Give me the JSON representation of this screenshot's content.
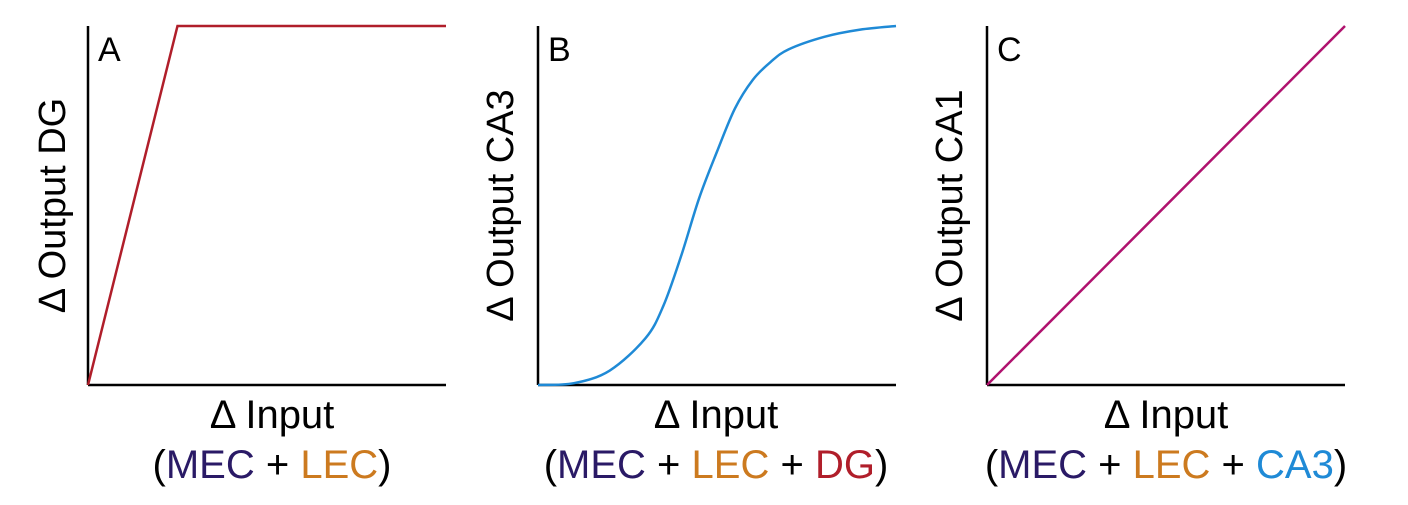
{
  "colors": {
    "mec": "#2a1a66",
    "lec": "#cc7a1f",
    "dg": "#b01e2a",
    "ca3": "#1f8ad6",
    "ca1": "#b0126e",
    "axis": "#000000"
  },
  "chart_data": [
    {
      "type": "line",
      "panel": "A",
      "ylabel": "Δ Output DG",
      "xlabel": "Δ Input",
      "xlim": [
        0,
        10
      ],
      "ylim": [
        0,
        10
      ],
      "line_color": "#b01e2a",
      "x": [
        0,
        2.5,
        10
      ],
      "y": [
        0,
        10,
        10
      ],
      "inputs": [
        {
          "text": "(",
          "color": "#000000"
        },
        {
          "text": "MEC",
          "color": "#2a1a66"
        },
        {
          "text": " + ",
          "color": "#000000"
        },
        {
          "text": "LEC",
          "color": "#cc7a1f"
        },
        {
          "text": ")",
          "color": "#000000"
        }
      ]
    },
    {
      "type": "line",
      "panel": "B",
      "ylabel": "Δ Output CA3",
      "xlabel": "Δ Input",
      "xlim": [
        0,
        10
      ],
      "ylim": [
        0,
        10
      ],
      "line_color": "#1f8ad6",
      "x": [
        0,
        1,
        2,
        3,
        3.5,
        4,
        4.5,
        5,
        5.5,
        6,
        6.5,
        7,
        8,
        9,
        10
      ],
      "y": [
        0,
        0.05,
        0.4,
        1.3,
        2.2,
        3.6,
        5.2,
        6.5,
        7.7,
        8.5,
        9.0,
        9.35,
        9.7,
        9.9,
        10
      ],
      "inputs": [
        {
          "text": "(",
          "color": "#000000"
        },
        {
          "text": "MEC",
          "color": "#2a1a66"
        },
        {
          "text": " + ",
          "color": "#000000"
        },
        {
          "text": "LEC",
          "color": "#cc7a1f"
        },
        {
          "text": " + ",
          "color": "#000000"
        },
        {
          "text": "DG",
          "color": "#b01e2a"
        },
        {
          "text": ")",
          "color": "#000000"
        }
      ]
    },
    {
      "type": "line",
      "panel": "C",
      "ylabel": "Δ Output CA1",
      "xlabel": "Δ Input",
      "xlim": [
        0,
        10
      ],
      "ylim": [
        0,
        10
      ],
      "line_color": "#b0126e",
      "x": [
        0,
        10
      ],
      "y": [
        0,
        10
      ],
      "inputs": [
        {
          "text": "(",
          "color": "#000000"
        },
        {
          "text": "MEC",
          "color": "#2a1a66"
        },
        {
          "text": " + ",
          "color": "#000000"
        },
        {
          "text": "LEC",
          "color": "#cc7a1f"
        },
        {
          "text": " + ",
          "color": "#000000"
        },
        {
          "text": "CA3",
          "color": "#1f8ad6"
        },
        {
          "text": ")",
          "color": "#000000"
        }
      ]
    }
  ]
}
